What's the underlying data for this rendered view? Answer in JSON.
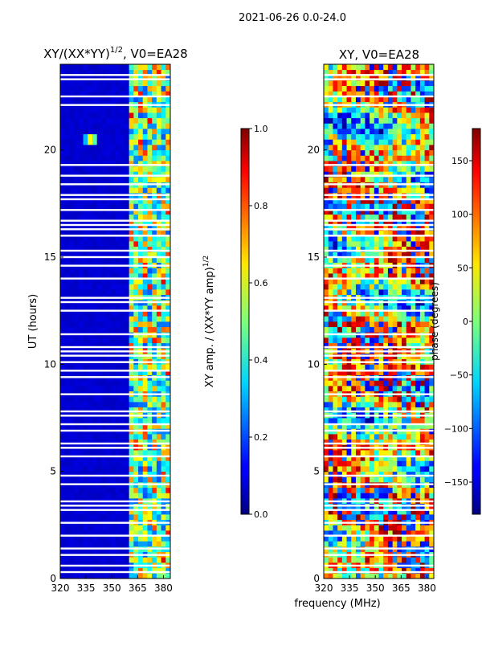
{
  "figure_title": "2021-06-26 0.0-24.0",
  "chart_data": [
    {
      "type": "heatmap",
      "title": "XY/(XX*YY)",
      "title_exponent": "1/2",
      "title_suffix": ", V0=EA28",
      "xlabel": "",
      "ylabel": "UT (hours)",
      "xlim": [
        320,
        384
      ],
      "ylim": [
        0,
        24
      ],
      "xticks": [
        320,
        335,
        350,
        365,
        380
      ],
      "yticks": [
        0,
        5,
        10,
        15,
        20
      ],
      "colormap": "jet",
      "colorbar": {
        "label": "XY amp. / (XX*YY amp)",
        "label_exponent": "1/2",
        "range": [
          0.0,
          1.0
        ],
        "ticks": [
          "0.0",
          "0.2",
          "0.4",
          "0.6",
          "0.8",
          "1.0"
        ]
      },
      "features": {
        "low_band_mhz": [
          320,
          360
        ],
        "low_band_value": 0.08,
        "high_band_mhz": [
          360,
          384
        ],
        "high_band_value_range": [
          0.2,
          0.9
        ],
        "hotspot": {
          "x_mhz": 338,
          "y_hours": 20.5,
          "value": 0.7
        },
        "flagged_rows_hours": [
          0.3,
          0.6,
          1.1,
          1.4,
          2.0,
          2.6,
          3.2,
          3.4,
          3.6,
          4.4,
          4.8,
          5.7,
          6.1,
          6.3,
          6.9,
          7.2,
          7.6,
          7.8,
          8.6,
          9.4,
          9.7,
          10.1,
          10.4,
          10.6,
          10.8,
          11.4,
          12.5,
          12.9,
          13.1,
          14.0,
          14.6,
          15.0,
          15.3,
          16.0,
          16.3,
          16.5,
          16.7,
          17.2,
          17.7,
          17.9,
          18.4,
          18.8,
          19.3,
          22.1,
          22.5,
          23.3,
          23.5
        ]
      }
    },
    {
      "type": "heatmap",
      "title": "XY, V0=EA28",
      "xlabel": "frequency (MHz)",
      "ylabel": "",
      "xlim": [
        320,
        384
      ],
      "ylim": [
        0,
        24
      ],
      "xticks": [
        320,
        335,
        350,
        365,
        380
      ],
      "yticks": [
        0,
        5,
        10,
        15,
        20
      ],
      "colormap": "jet",
      "colorbar": {
        "label": "phase (degrees)",
        "range": [
          -180,
          180
        ],
        "ticks": [
          "−150",
          "−100",
          "−50",
          "0",
          "50",
          "100",
          "150"
        ]
      },
      "features": {
        "value_range_deg": [
          -180,
          180
        ],
        "pattern": "noisy mixed phase, predominantly red/orange with blue and yellow-green streaks",
        "flagged_rows_hours": [
          0.3,
          0.6,
          1.1,
          1.4,
          2.0,
          2.6,
          3.2,
          3.4,
          3.6,
          4.4,
          4.8,
          5.7,
          6.1,
          6.3,
          6.9,
          7.2,
          7.6,
          7.8,
          8.6,
          9.4,
          9.7,
          10.1,
          10.4,
          10.6,
          10.8,
          11.4,
          12.5,
          12.9,
          13.1,
          14.0,
          14.6,
          15.0,
          15.3,
          16.0,
          16.3,
          16.5,
          16.7,
          17.2,
          17.7,
          17.9,
          18.4,
          18.8,
          19.3,
          22.1,
          22.5,
          23.3,
          23.5
        ]
      }
    }
  ]
}
